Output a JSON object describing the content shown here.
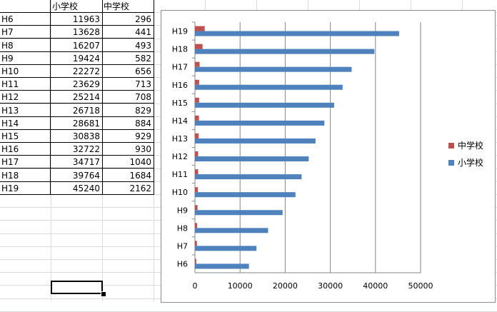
{
  "sheet": {
    "headers": [
      "",
      "小学校",
      "中学校"
    ],
    "rows": [
      [
        "H6",
        "11963",
        "296"
      ],
      [
        "H7",
        "13628",
        "441"
      ],
      [
        "H8",
        "16207",
        "493"
      ],
      [
        "H9",
        "19424",
        "582"
      ],
      [
        "H10",
        "22272",
        "656"
      ],
      [
        "H11",
        "23629",
        "713"
      ],
      [
        "H12",
        "25214",
        "708"
      ],
      [
        "H13",
        "26718",
        "829"
      ],
      [
        "H14",
        "28681",
        "884"
      ],
      [
        "H15",
        "30838",
        "929"
      ],
      [
        "H16",
        "32722",
        "930"
      ],
      [
        "H17",
        "34717",
        "1040"
      ],
      [
        "H18",
        "39764",
        "1684"
      ],
      [
        "H19",
        "45240",
        "2162"
      ]
    ],
    "grid_color": "#dadcdd"
  },
  "chart_data": {
    "type": "bar",
    "orientation": "horizontal",
    "categories": [
      "H6",
      "H7",
      "H8",
      "H9",
      "H10",
      "H11",
      "H12",
      "H13",
      "H14",
      "H15",
      "H16",
      "H17",
      "H18",
      "H19"
    ],
    "series": [
      {
        "name": "小学校",
        "color": "#4f81bd",
        "values": [
          11963,
          13628,
          16207,
          19424,
          22272,
          23629,
          25214,
          26718,
          28681,
          30838,
          32722,
          34717,
          39764,
          45240
        ]
      },
      {
        "name": "中学校",
        "color": "#c0504d",
        "values": [
          296,
          441,
          493,
          582,
          656,
          713,
          708,
          829,
          884,
          929,
          930,
          1040,
          1684,
          2162
        ]
      }
    ],
    "xlim": [
      0,
      50000
    ],
    "xticks": [
      "0",
      "10000",
      "20000",
      "30000",
      "40000",
      "50000"
    ],
    "grid": true,
    "legend_position": "right",
    "legend_order": [
      "中学校",
      "小学校"
    ]
  }
}
